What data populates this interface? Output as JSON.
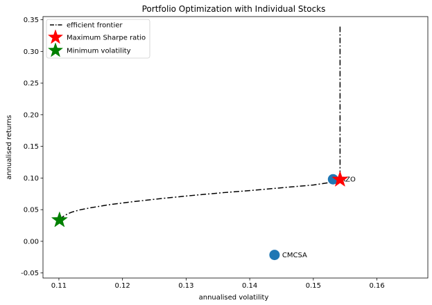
{
  "chart_data": {
    "type": "scatter",
    "title": "Portfolio Optimization with Individual Stocks",
    "xlabel": "annualised volatility",
    "ylabel": "annualised returns",
    "xlim": [
      0.1075,
      0.168
    ],
    "ylim": [
      -0.058,
      0.355
    ],
    "x_ticks": [
      0.11,
      0.12,
      0.13,
      0.14,
      0.15,
      0.16
    ],
    "x_tick_labels": [
      "0.11",
      "0.12",
      "0.13",
      "0.14",
      "0.15",
      "0.16"
    ],
    "y_ticks": [
      -0.05,
      0.0,
      0.05,
      0.1,
      0.15,
      0.2,
      0.25,
      0.3,
      0.35
    ],
    "y_tick_labels": [
      "-0.05",
      "0.00",
      "0.05",
      "0.10",
      "0.15",
      "0.20",
      "0.25",
      "0.30",
      "0.35"
    ],
    "grid": false,
    "legend_position": "top-left",
    "stocks": [
      {
        "label": "CMCSA",
        "x": 0.1439,
        "y": -0.0215,
        "color": "#1f77b4"
      },
      {
        "label": "AZO",
        "x": 0.1531,
        "y": 0.098,
        "color": "#1f77b4"
      }
    ],
    "series": [
      {
        "name": "efficient frontier",
        "style": "dashdot",
        "color": "#000000",
        "x": [
          0.1102,
          0.1104,
          0.1108,
          0.1113,
          0.112,
          0.1132,
          0.115,
          0.118,
          0.122,
          0.1265,
          0.131,
          0.136,
          0.141,
          0.146,
          0.15,
          0.153,
          0.1542,
          0.1542,
          0.1542,
          0.1542,
          0.1542,
          0.1542,
          0.1542,
          0.1542
        ],
        "y": [
          0.034,
          0.037,
          0.04,
          0.043,
          0.046,
          0.0495,
          0.053,
          0.058,
          0.063,
          0.068,
          0.0725,
          0.077,
          0.081,
          0.0855,
          0.089,
          0.0935,
          0.0975,
          0.12,
          0.15,
          0.18,
          0.21,
          0.25,
          0.3,
          0.34
        ]
      }
    ],
    "markers": [
      {
        "name": "Maximum Sharpe ratio",
        "x": 0.1542,
        "y": 0.0975,
        "color": "#ff0000",
        "shape": "star"
      },
      {
        "name": "Minimum volatility",
        "x": 0.1101,
        "y": 0.0335,
        "color": "#008000",
        "shape": "star"
      }
    ]
  }
}
